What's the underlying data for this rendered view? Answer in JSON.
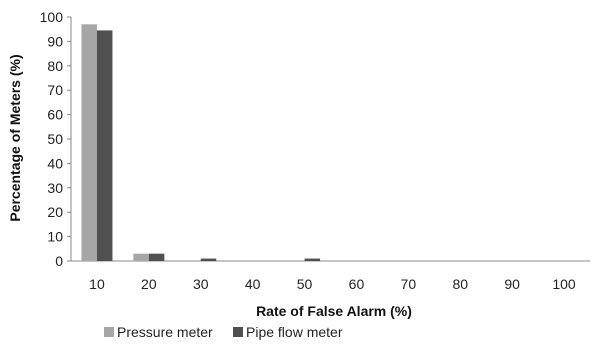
{
  "chart_data": {
    "type": "bar",
    "title": "",
    "xlabel": "Rate of False Alarm (%)",
    "ylabel": "Percentage of Meters (%)",
    "categories": [
      "10",
      "20",
      "30",
      "40",
      "50",
      "60",
      "70",
      "80",
      "90",
      "100"
    ],
    "yticks": [
      "0",
      "10",
      "20",
      "30",
      "40",
      "50",
      "60",
      "70",
      "80",
      "90",
      "100"
    ],
    "ylim": [
      0,
      100
    ],
    "grid": false,
    "legend_position": "bottom",
    "series": [
      {
        "name": "Pressure meter",
        "color": "#a6a6a6",
        "values": [
          97,
          3,
          0,
          0,
          0,
          0,
          0,
          0,
          0,
          0
        ]
      },
      {
        "name": "Pipe flow meter",
        "color": "#505050",
        "values": [
          94.5,
          3,
          1,
          0,
          1,
          0,
          0,
          0,
          0,
          0
        ]
      }
    ]
  }
}
